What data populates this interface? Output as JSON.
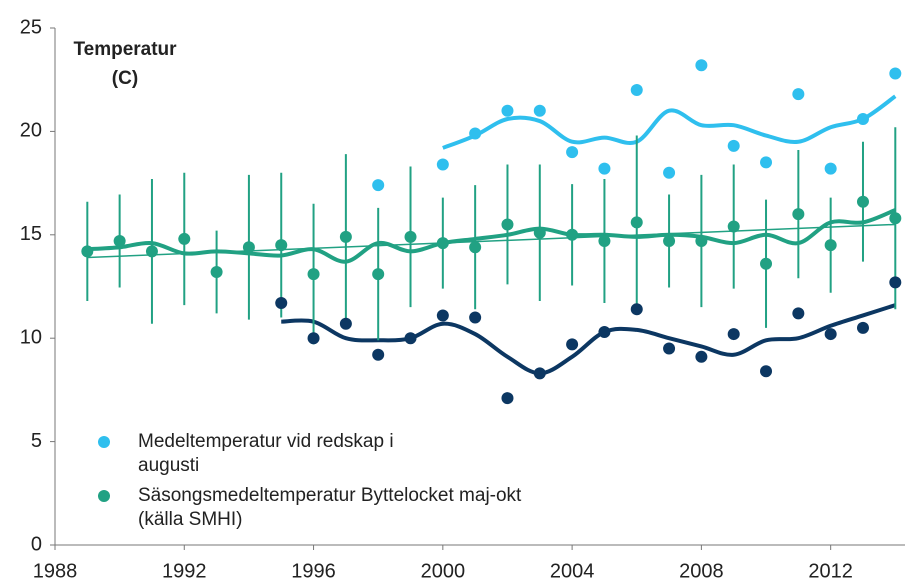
{
  "chart_data": {
    "type": "scatter",
    "y_label": [
      "Temperatur",
      "(C)"
    ],
    "xlim": [
      1988,
      2014.3
    ],
    "xticks": [
      1988,
      1992,
      1996,
      2000,
      2004,
      2008,
      2012
    ],
    "ylim": [
      0,
      25
    ],
    "yticks": [
      0,
      5,
      10,
      15,
      20,
      25
    ],
    "legend": "lower left",
    "series": [
      {
        "name": "Medeltemperatur vid redskap i augusti",
        "kind": "points",
        "color": "#2fbfee",
        "x": [
          1998,
          2000,
          2001,
          2002,
          2003,
          2004,
          2005,
          2006,
          2007,
          2008,
          2009,
          2010,
          2011,
          2012,
          2013,
          2014
        ],
        "values": [
          17.4,
          18.4,
          19.9,
          21.0,
          21.0,
          19.0,
          18.2,
          22.0,
          18.0,
          23.2,
          19.3,
          18.5,
          21.8,
          18.2,
          20.6,
          22.8
        ]
      },
      {
        "kind": "smooth",
        "color": "#2fbfee",
        "x": [
          2000,
          2001,
          2002,
          2003,
          2004,
          2005,
          2006,
          2007,
          2008,
          2009,
          2010,
          2011,
          2012,
          2013,
          2014
        ],
        "values": [
          19.2,
          19.8,
          20.6,
          20.5,
          19.5,
          19.7,
          19.5,
          21.0,
          20.3,
          20.3,
          19.8,
          19.5,
          20.2,
          20.6,
          21.7
        ]
      },
      {
        "name": "Säsongsmedeltemperatur Byttelocket maj-okt (källa SMHI)",
        "kind": "points",
        "color": "#21a183",
        "x": [
          1989,
          1990,
          1991,
          1992,
          1993,
          1994,
          1995,
          1996,
          1997,
          1998,
          1999,
          2000,
          2001,
          2002,
          2003,
          2004,
          2005,
          2006,
          2007,
          2008,
          2009,
          2010,
          2011,
          2012,
          2013,
          2014
        ],
        "values": [
          14.2,
          14.7,
          14.2,
          14.8,
          13.2,
          14.4,
          14.5,
          13.1,
          14.9,
          13.1,
          14.9,
          14.6,
          14.4,
          15.5,
          15.1,
          15.0,
          14.7,
          15.6,
          14.7,
          14.7,
          15.4,
          13.6,
          16.0,
          14.5,
          16.6,
          15.8
        ],
        "errors": [
          2.4,
          2.25,
          3.5,
          3.2,
          2.0,
          3.5,
          3.5,
          3.4,
          4.0,
          3.2,
          3.4,
          2.2,
          3.0,
          2.9,
          3.3,
          2.45,
          3.0,
          4.2,
          2.25,
          3.2,
          3.0,
          3.1,
          3.1,
          2.3,
          2.9,
          4.4
        ]
      },
      {
        "kind": "smooth",
        "color": "#21a183",
        "x": [
          1989,
          1990,
          1991,
          1992,
          1993,
          1994,
          1995,
          1996,
          1997,
          1998,
          1999,
          2000,
          2001,
          2002,
          2003,
          2004,
          2005,
          2006,
          2007,
          2008,
          2009,
          2010,
          2011,
          2012,
          2013,
          2014
        ],
        "values": [
          14.3,
          14.4,
          14.6,
          14.1,
          14.2,
          14.1,
          14.0,
          14.3,
          13.7,
          14.6,
          14.2,
          14.6,
          14.8,
          15.0,
          15.3,
          15.0,
          15.0,
          14.9,
          15.0,
          14.9,
          14.6,
          15.0,
          14.6,
          15.6,
          15.6,
          16.2
        ]
      },
      {
        "kind": "trend",
        "color": "#21a183",
        "x": [
          1989,
          2014
        ],
        "values": [
          13.9,
          15.5
        ]
      },
      {
        "kind": "points",
        "color": "#0c3762",
        "x": [
          1995,
          1996,
          1997,
          1998,
          1999,
          2000,
          2001,
          2002,
          2003,
          2004,
          2005,
          2006,
          2007,
          2008,
          2009,
          2010,
          2011,
          2012,
          2013,
          2014
        ],
        "values": [
          11.7,
          10.0,
          10.7,
          9.2,
          10.0,
          11.1,
          11.0,
          7.1,
          8.3,
          9.7,
          10.3,
          11.4,
          9.5,
          9.1,
          10.2,
          8.4,
          11.2,
          10.2,
          10.5,
          12.7
        ]
      },
      {
        "kind": "smooth",
        "color": "#0c3762",
        "x": [
          1995,
          1996,
          1997,
          1998,
          1999,
          2000,
          2001,
          2002,
          2003,
          2004,
          2005,
          2006,
          2007,
          2008,
          2009,
          2010,
          2011,
          2012,
          2013,
          2014
        ],
        "values": [
          10.8,
          10.8,
          10.0,
          9.9,
          10.0,
          10.7,
          10.2,
          9.1,
          8.3,
          9.1,
          10.3,
          10.4,
          10.0,
          9.6,
          9.2,
          9.9,
          10.0,
          10.6,
          11.1,
          11.6
        ]
      }
    ]
  }
}
